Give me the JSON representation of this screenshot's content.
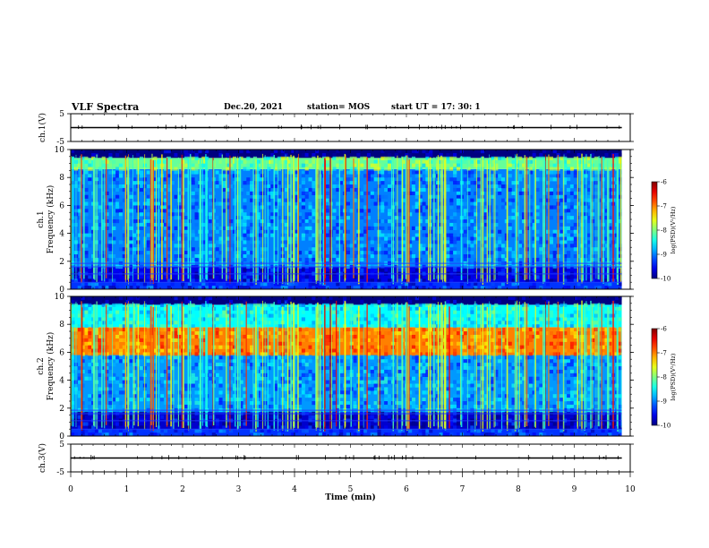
{
  "header": {
    "title": "VLF Spectra",
    "date": "Dec.20, 2021",
    "station": "station= MOS",
    "start": "start UT = 17: 30: 1"
  },
  "chart_data": [
    {
      "type": "line",
      "ylabel": "ch.1(V)",
      "ylim": [
        -5,
        5
      ],
      "yticks": [
        "5",
        "-5"
      ],
      "x": [
        0,
        10
      ],
      "values": [
        0,
        0
      ]
    },
    {
      "type": "heatmap",
      "ylabel": "ch.1\nFrequency (kHz)",
      "ylim": [
        0,
        10
      ],
      "yticks": [
        "0",
        "2",
        "4",
        "6",
        "8",
        "10"
      ],
      "colorbar": {
        "label": "log(PSD)(V²/Hz)",
        "ticks": [
          "-6",
          "-7",
          "-8",
          "-9",
          "-10"
        ],
        "range": [
          -10,
          -6
        ]
      },
      "bands": [
        {
          "from": 0,
          "to": 0.5,
          "level": -9.3
        },
        {
          "from": 0.5,
          "to": 1.6,
          "level": -9.6
        },
        {
          "from": 1.6,
          "to": 8.6,
          "level": -9.0
        },
        {
          "from": 8.6,
          "to": 9.4,
          "level": -8.1
        },
        {
          "from": 9.4,
          "to": 10,
          "level": -10
        }
      ]
    },
    {
      "type": "heatmap",
      "ylabel": "ch.2\nFrequency (kHz)",
      "ylim": [
        0,
        10
      ],
      "yticks": [
        "0",
        "2",
        "4",
        "6",
        "8",
        "10"
      ],
      "colorbar": {
        "label": "log(PSD)(V²/Hz)",
        "ticks": [
          "-6",
          "-7",
          "-8",
          "-9",
          "-10"
        ],
        "range": [
          -10,
          -6
        ]
      },
      "bands": [
        {
          "from": 0,
          "to": 0.5,
          "level": -9.3
        },
        {
          "from": 0.5,
          "to": 1.7,
          "level": -9.7
        },
        {
          "from": 1.7,
          "to": 5.8,
          "level": -8.9
        },
        {
          "from": 5.8,
          "to": 7.8,
          "level": -7.0
        },
        {
          "from": 7.8,
          "to": 9.4,
          "level": -8.5
        },
        {
          "from": 9.4,
          "to": 10,
          "level": -10
        }
      ]
    },
    {
      "type": "line",
      "ylabel": "ch.3(V)",
      "ylim": [
        -5,
        5
      ],
      "yticks": [
        "5",
        "-5"
      ],
      "x": [
        0,
        10
      ],
      "values": [
        0,
        0
      ]
    }
  ],
  "xaxis": {
    "label": "Time (min)",
    "ticks": [
      "0",
      "1",
      "2",
      "3",
      "4",
      "5",
      "6",
      "7",
      "8",
      "9",
      "10"
    ],
    "xlim": [
      0,
      10
    ],
    "data_end": 9.85
  }
}
